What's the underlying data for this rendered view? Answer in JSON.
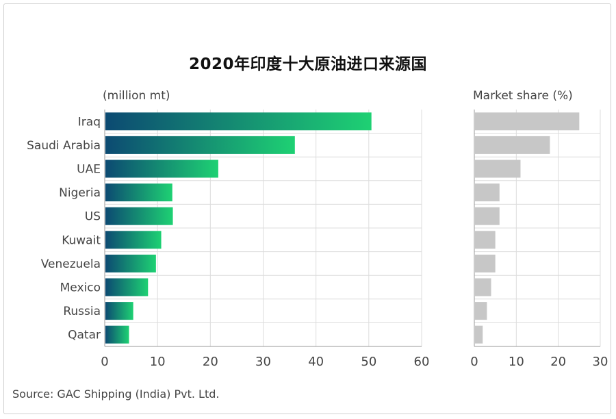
{
  "title": "2020年印度十大原油进口来源国",
  "source": "Source: GAC Shipping (India) Pvt. Ltd.",
  "colors": {
    "bar_start": "#0c4a72",
    "bar_end": "#1ed173",
    "share_bar": "#c7c7c7",
    "grid": "#dcdcdc",
    "axis": "#9a9a9a"
  },
  "chart_data": [
    {
      "type": "bar",
      "orientation": "horizontal",
      "unit_label": "(million mt)",
      "categories": [
        "Iraq",
        "Saudi Arabia",
        "UAE",
        "Nigeria",
        "US",
        "Kuwait",
        "Venezuela",
        "Mexico",
        "Russia",
        "Qatar"
      ],
      "values": [
        50.5,
        36.0,
        21.5,
        12.8,
        12.9,
        10.7,
        9.7,
        8.2,
        5.4,
        4.6
      ],
      "xlim": [
        0,
        60
      ],
      "xticks": [
        0,
        10,
        20,
        30,
        40,
        50,
        60
      ],
      "grid": true
    },
    {
      "type": "bar",
      "orientation": "horizontal",
      "unit_label": "Market share (%)",
      "categories": [
        "Iraq",
        "Saudi Arabia",
        "UAE",
        "Nigeria",
        "US",
        "Kuwait",
        "Venezuela",
        "Mexico",
        "Russia",
        "Qatar"
      ],
      "values": [
        25,
        18,
        11,
        6,
        6,
        5,
        5,
        4,
        3,
        2
      ],
      "xlim": [
        0,
        30
      ],
      "xticks": [
        0,
        10,
        20,
        30
      ],
      "grid": true
    }
  ]
}
